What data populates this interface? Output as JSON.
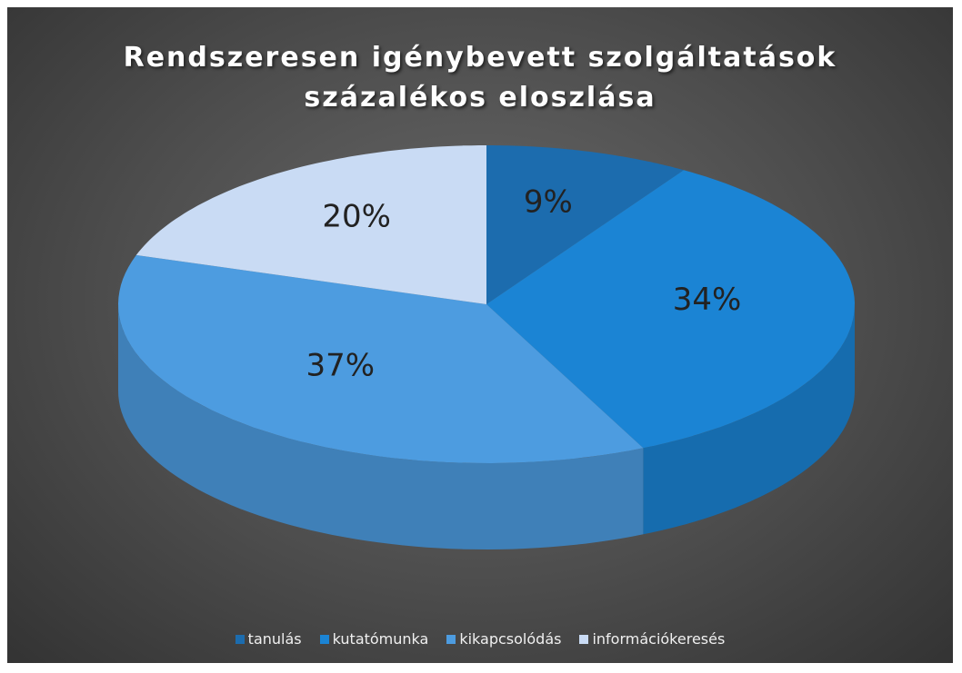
{
  "chart_data": {
    "type": "pie",
    "title": "Rendszeresen igénybevett szolgáltatások százalékos eloszlása",
    "categories": [
      "tanulás",
      "kutatómunka",
      "kikapcsolódás",
      "információkeresés"
    ],
    "values": [
      9,
      34,
      37,
      20
    ],
    "value_labels": [
      "9%",
      "34%",
      "37%",
      "20%"
    ],
    "colors": [
      "#1c6cae",
      "#1b84d4",
      "#4d9ce0",
      "#c9dbf4"
    ],
    "legend": "bottom"
  }
}
